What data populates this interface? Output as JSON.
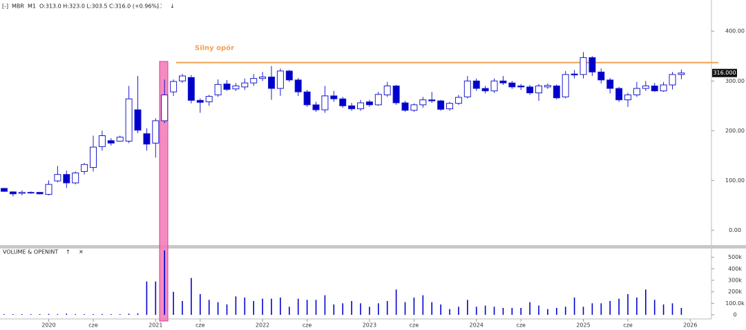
{
  "header": {
    "symbol": "MBR",
    "interval": "M1",
    "quote": "O:313.0 H:323.0 L:303.5 C:316.0 (+0.96%)"
  },
  "chart_data": [
    {
      "type": "candlestick",
      "open": [
        84,
        77,
        74,
        76,
        76,
        72,
        99,
        112,
        95,
        118,
        126,
        168,
        180,
        179,
        179,
        242,
        194,
        175,
        220,
        278,
        300,
        307,
        261,
        258,
        272,
        294,
        284,
        288,
        296,
        305,
        308,
        285,
        320,
        302,
        278,
        252,
        242,
        270,
        264,
        250,
        244,
        258,
        252,
        272,
        290,
        256,
        241,
        252,
        262,
        260,
        244,
        255,
        268,
        300,
        285,
        280,
        300,
        296,
        290,
        288,
        276,
        288,
        290,
        268,
        314,
        313,
        347,
        318,
        302,
        285,
        262,
        272,
        285,
        290,
        280,
        292,
        313,
        null
      ],
      "high": [
        85,
        78,
        80,
        78,
        77,
        100,
        129,
        120,
        118,
        135,
        190,
        200,
        185,
        190,
        290,
        310,
        205,
        225,
        303,
        303,
        314,
        312,
        265,
        272,
        303,
        302,
        296,
        305,
        314,
        318,
        330,
        325,
        322,
        306,
        282,
        258,
        290,
        280,
        268,
        256,
        262,
        262,
        278,
        298,
        292,
        260,
        255,
        268,
        278,
        262,
        258,
        272,
        310,
        305,
        290,
        305,
        310,
        300,
        294,
        292,
        294,
        295,
        293,
        320,
        322,
        358,
        350,
        325,
        306,
        288,
        276,
        298,
        300,
        296,
        298,
        318,
        323,
        null
      ],
      "low": [
        77,
        68,
        70,
        73,
        72,
        70,
        96,
        85,
        92,
        112,
        118,
        160,
        170,
        178,
        175,
        195,
        160,
        146,
        215,
        270,
        296,
        255,
        236,
        250,
        268,
        280,
        280,
        282,
        290,
        300,
        262,
        270,
        298,
        270,
        248,
        238,
        236,
        258,
        246,
        240,
        240,
        248,
        250,
        268,
        252,
        238,
        238,
        246,
        256,
        240,
        240,
        252,
        265,
        280,
        275,
        276,
        292,
        284,
        282,
        272,
        260,
        284,
        263,
        265,
        305,
        305,
        310,
        295,
        275,
        258,
        248,
        268,
        280,
        278,
        278,
        283,
        303.5,
        null
      ],
      "close": [
        78,
        73,
        76,
        75,
        73,
        92,
        112,
        95,
        115,
        132,
        167,
        190,
        175,
        187,
        264,
        201,
        173,
        220,
        272,
        299,
        310,
        261,
        257,
        269,
        293,
        283,
        290,
        296,
        305,
        308,
        285,
        320,
        302,
        278,
        252,
        242,
        270,
        264,
        250,
        244,
        256,
        252,
        273,
        290,
        256,
        241,
        252,
        262,
        260,
        243,
        255,
        267,
        300,
        285,
        280,
        300,
        296,
        288,
        288,
        276,
        290,
        291,
        266,
        313,
        312,
        347,
        318,
        302,
        285,
        262,
        272,
        285,
        290,
        280,
        292,
        313,
        316,
        null
      ],
      "up_color": "#ffffff",
      "down_color": "#0000cc",
      "line_color": "#1a1acc",
      "ylim": [
        -30,
        460
      ],
      "yticks": [
        {
          "value": 0,
          "label": "0.00"
        },
        {
          "value": 100,
          "label": "100.00"
        },
        {
          "value": 200,
          "label": "200.00"
        },
        {
          "value": 300,
          "label": "300.00"
        },
        {
          "value": 400,
          "label": "400.00"
        }
      ],
      "last_price": {
        "value": 316,
        "label": "316.000"
      },
      "annotation": {
        "text": "Silny opór",
        "value": 337,
        "color": "#f0a050"
      }
    },
    {
      "type": "bar",
      "title": "VOLUME & OPENINT",
      "color": "#0000cc",
      "categories": [
        null,
        null,
        null,
        null,
        null,
        "2020",
        null,
        null,
        null,
        null,
        "cze",
        null,
        null,
        null,
        null,
        null,
        null,
        "2021",
        null,
        null,
        null,
        null,
        "cze",
        null,
        null,
        null,
        null,
        null,
        null,
        "2022",
        null,
        null,
        null,
        null,
        "cze",
        null,
        null,
        null,
        null,
        null,
        null,
        "2023",
        null,
        null,
        null,
        null,
        "cze",
        null,
        null,
        null,
        null,
        null,
        null,
        "2024",
        null,
        null,
        null,
        null,
        "cze",
        null,
        null,
        null,
        null,
        null,
        null,
        "2025",
        null,
        null,
        null,
        null,
        "cze",
        null,
        null,
        null,
        null,
        null,
        null,
        "2026"
      ],
      "values": [
        4000,
        3000,
        5000,
        4000,
        3000,
        8000,
        6000,
        10000,
        5000,
        4000,
        6000,
        7000,
        4000,
        6000,
        10000,
        12000,
        290000,
        290000,
        560000,
        200000,
        120000,
        320000,
        180000,
        130000,
        110000,
        90000,
        160000,
        150000,
        120000,
        140000,
        140000,
        150000,
        70000,
        140000,
        130000,
        130000,
        170000,
        90000,
        100000,
        120000,
        100000,
        70000,
        100000,
        120000,
        220000,
        110000,
        150000,
        170000,
        110000,
        90000,
        50000,
        70000,
        130000,
        70000,
        80000,
        70000,
        60000,
        60000,
        60000,
        110000,
        80000,
        50000,
        60000,
        70000,
        150000,
        70000,
        100000,
        100000,
        120000,
        140000,
        180000,
        150000,
        220000,
        130000,
        90000,
        100000,
        60000,
        null
      ],
      "ylim": [
        -36000,
        540000
      ],
      "yticks": [
        0,
        {
          "value": 100000,
          "label": "100.0k"
        },
        {
          "value": 200000,
          "label": "200k"
        },
        {
          "value": 300000,
          "label": "300k"
        },
        {
          "value": 400000,
          "label": "400k"
        },
        {
          "value": 500000,
          "label": "500k"
        }
      ]
    }
  ]
}
